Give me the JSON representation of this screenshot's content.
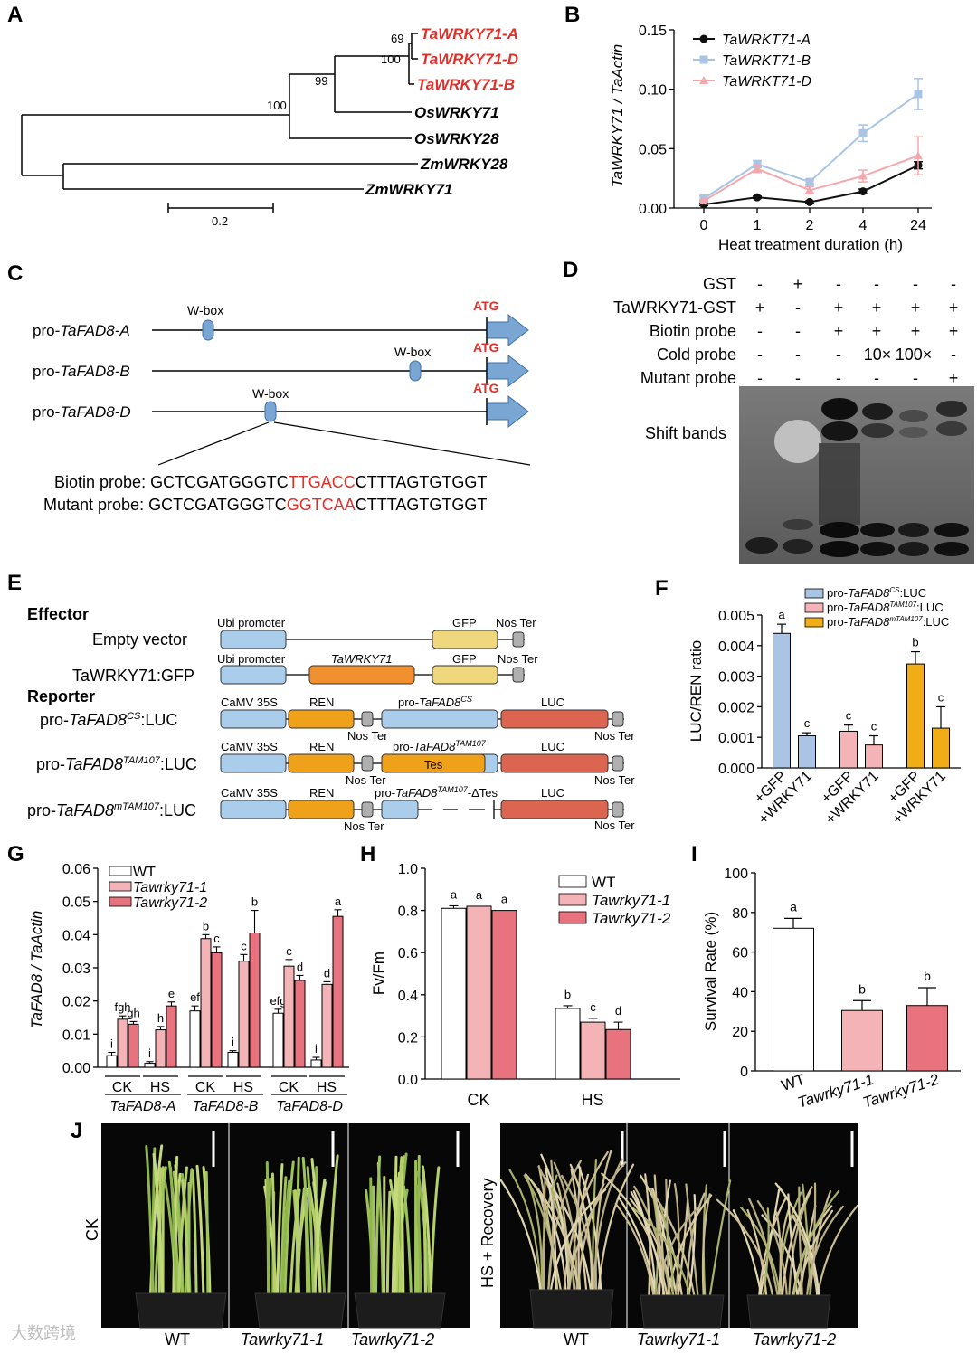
{
  "panel_letters": [
    "A",
    "B",
    "C",
    "D",
    "E",
    "F",
    "G",
    "H",
    "I",
    "J"
  ],
  "tree": {
    "leaves": [
      "TaWRKY71-A",
      "TaWRKY71-D",
      "TaWRKY71-B",
      "OsWRKY71",
      "OsWRKY28",
      "ZmWRKY28",
      "ZmWRKY71"
    ],
    "bootstrap": [
      "69",
      "100",
      "99",
      "100"
    ],
    "scale": "0.2",
    "highlight_color": "#e0302a"
  },
  "chart_data": [
    {
      "panel": "B",
      "type": "line",
      "xlabel": "Heat treatment duration (h)",
      "ylabel": "TaWRKY71 / TaActin",
      "categories": [
        "0",
        "1",
        "2",
        "4",
        "24"
      ],
      "ylim": [
        0,
        0.15
      ],
      "yticks": [
        "0.00",
        "0.05",
        "0.10",
        "0.15"
      ],
      "legend": "top-left",
      "series": [
        {
          "name": "TaWRKT71-A",
          "color": "#111111",
          "marker": "circle",
          "values": [
            0.003,
            0.009,
            0.005,
            0.014,
            0.036
          ],
          "err": [
            0.001,
            0.001,
            0.001,
            0.002,
            0.003
          ]
        },
        {
          "name": "TaWRKT71-B",
          "color": "#a9c4e4",
          "marker": "square",
          "values": [
            0.008,
            0.037,
            0.022,
            0.063,
            0.096
          ],
          "err": [
            0.002,
            0.003,
            0.002,
            0.007,
            0.013
          ]
        },
        {
          "name": "TaWRKT71-D",
          "color": "#f3a8ae",
          "marker": "triangle",
          "values": [
            0.006,
            0.033,
            0.015,
            0.027,
            0.044
          ],
          "err": [
            0.001,
            0.003,
            0.003,
            0.005,
            0.016
          ]
        }
      ]
    },
    {
      "panel": "F",
      "type": "bar",
      "ylabel": "LUC/REN ratio",
      "ylim": [
        0,
        0.005
      ],
      "yticks": [
        "0.000",
        "0.001",
        "0.002",
        "0.003",
        "0.004",
        "0.005"
      ],
      "categories": [
        "+GFP",
        "+WRKY71",
        "+GFP",
        "+WRKY71",
        "+GFP",
        "+WRKY71"
      ],
      "values": [
        0.0044,
        0.00105,
        0.0012,
        0.00075,
        0.0034,
        0.0013
      ],
      "err": [
        0.0003,
        0.0001,
        0.0002,
        0.0003,
        0.0004,
        0.0007
      ],
      "letters": [
        "a",
        "c",
        "c",
        "c",
        "b",
        "c"
      ],
      "colors": [
        "#a9c4e4",
        "#a9c4e4",
        "#f4b3b6",
        "#f4b3b6",
        "#f0ad16",
        "#f0ad16"
      ],
      "legend": [
        "pro-TaFAD8CS:LUC",
        "pro-TaFAD8TAM107:LUC",
        "pro-TaFAD8mTAM107:LUC"
      ]
    },
    {
      "panel": "G",
      "type": "bar",
      "ylabel": "TaFAD8 / TaActin",
      "ylim": [
        0,
        0.06
      ],
      "yticks": [
        "0.00",
        "0.01",
        "0.02",
        "0.03",
        "0.04",
        "0.05",
        "0.06"
      ],
      "groups": [
        "CK",
        "HS",
        "CK",
        "HS",
        "CK",
        "HS"
      ],
      "genes": [
        "TaFAD8-A",
        "TaFAD8-B",
        "TaFAD8-D"
      ],
      "series": [
        {
          "name": "WT",
          "color": "#ffffff",
          "values": [
            0.0035,
            0.0012,
            0.017,
            0.0045,
            0.0163,
            0.0022
          ],
          "err": [
            0.001,
            0.0005,
            0.0015,
            0.0005,
            0.0012,
            0.0008
          ]
        },
        {
          "name": "Tawrky71-1",
          "color": "#f4b3b6",
          "values": [
            0.0145,
            0.0113,
            0.0388,
            0.032,
            0.0305,
            0.025
          ],
          "err": [
            0.001,
            0.001,
            0.0012,
            0.002,
            0.002,
            0.0008
          ]
        },
        {
          "name": "Tawrky71-2",
          "color": "#e8727e",
          "values": [
            0.013,
            0.0185,
            0.0345,
            0.0405,
            0.0262,
            0.0455
          ],
          "err": [
            0.0008,
            0.0012,
            0.0018,
            0.0068,
            0.0015,
            0.002
          ]
        }
      ],
      "letters": [
        "i",
        "fgh",
        "gh",
        "i",
        "h",
        "e",
        "ef",
        "b",
        "c",
        "i",
        "c",
        "b",
        "efg",
        "c",
        "d",
        "i",
        "d",
        "a"
      ],
      "legend": "top-left"
    },
    {
      "panel": "H",
      "type": "bar",
      "ylabel": "Fv/Fm",
      "ylim": [
        0,
        1.0
      ],
      "yticks": [
        "0.0",
        "0.2",
        "0.4",
        "0.6",
        "0.8",
        "1.0"
      ],
      "categories": [
        "CK",
        "HS"
      ],
      "series": [
        {
          "name": "WT",
          "color": "#ffffff",
          "values": [
            0.81,
            0.335
          ],
          "err": [
            0.012,
            0.013
          ]
        },
        {
          "name": "Tawrky71-1",
          "color": "#f4b3b6",
          "values": [
            0.82,
            0.27
          ],
          "err": [
            0.0,
            0.018
          ]
        },
        {
          "name": "Tawrky71-2",
          "color": "#e8727e",
          "values": [
            0.8,
            0.235
          ],
          "err": [
            0.0,
            0.035
          ]
        }
      ],
      "letters": [
        "a",
        "a",
        "a",
        "b",
        "c",
        "d"
      ],
      "legend": "top-right"
    },
    {
      "panel": "I",
      "type": "bar",
      "ylabel": "Survival Rate (%)",
      "ylim": [
        0,
        100
      ],
      "yticks": [
        "0",
        "20",
        "40",
        "60",
        "80",
        "100"
      ],
      "categories": [
        "WT",
        "Tawrky71-1",
        "Tawrky71-2"
      ],
      "values": [
        72,
        30.5,
        33
      ],
      "err": [
        5,
        5,
        9
      ],
      "letters": [
        "a",
        "b",
        "b"
      ],
      "colors": [
        "#ffffff",
        "#f4b3b6",
        "#e8727e"
      ]
    }
  ],
  "panelC": {
    "promoters": [
      "pro-",
      "pro-",
      "pro-"
    ],
    "genes": [
      "TaFAD8-A",
      "TaFAD8-B",
      "TaFAD8-D"
    ],
    "wbox": "W-box",
    "atg": "ATG",
    "biotin_label": "Biotin probe:",
    "biotin_seq": [
      "GCTCGATGGGTC",
      "TTGACC",
      "CTTTAGTGTGGT"
    ],
    "mutant_label": "Mutant probe:",
    "mutant_seq": [
      "GCTCGATGGGTC",
      "GGTCAA",
      "CTTTAGTGTGGT"
    ],
    "accent": "#e0302a",
    "arrow_color": "#7aa6d4"
  },
  "panelD": {
    "rows": [
      {
        "label": "GST",
        "marks": [
          "-",
          "+",
          "-",
          "-",
          "-",
          "-"
        ]
      },
      {
        "label": "TaWRKY71-GST",
        "marks": [
          "+",
          "-",
          "+",
          "+",
          "+",
          "+"
        ]
      },
      {
        "label": "Biotin probe",
        "marks": [
          "-",
          "-",
          "+",
          "+",
          "+",
          "+"
        ]
      },
      {
        "label": "Cold probe",
        "marks": [
          "-",
          "-",
          "-",
          "10×",
          "100×",
          "-"
        ]
      },
      {
        "label": "Mutant probe",
        "marks": [
          "-",
          "-",
          "-",
          "-",
          "-",
          "+"
        ]
      }
    ],
    "band_label": "Shift bands"
  },
  "panelE": {
    "effector": "Effector",
    "reporter": "Reporter",
    "empty_vector": "Empty vector",
    "tawrky": "TaWRKY71:GFP",
    "ubi": "Ubi promoter",
    "gfp": "GFP",
    "nos": "Nos Ter",
    "tawrky71": "TaWRKY71",
    "camv": "CaMV 35S",
    "ren": "REN",
    "luc": "LUC",
    "tes": "Tes",
    "r1": {
      "a": "pro-",
      "b": "TaFAD8",
      "sup": "CS",
      "c": ":LUC"
    },
    "r2": {
      "a": "pro-",
      "b": "TaFAD8",
      "sup": "TAM107",
      "c": ":LUC"
    },
    "r3": {
      "a": "pro-",
      "b": "TaFAD8",
      "sup": "mTAM107",
      "c": ":LUC"
    },
    "p1": {
      "a": "pro-",
      "b": "TaFAD8",
      "sup": "CS"
    },
    "p2": {
      "a": "pro-",
      "b": "TaFAD8",
      "sup": "TAM107"
    },
    "p3": {
      "a": "pro-",
      "b": "TaFAD8",
      "sup": "TAM107",
      "c": "-ΔTes"
    }
  },
  "panelJ": {
    "ck": "CK",
    "hs": "HS + Recovery",
    "labels": [
      "WT",
      "Tawrky71-1",
      "Tawrky71-2",
      "WT",
      "Tawrky71-1",
      "Tawrky71-2"
    ]
  },
  "watermark": "大数跨境"
}
